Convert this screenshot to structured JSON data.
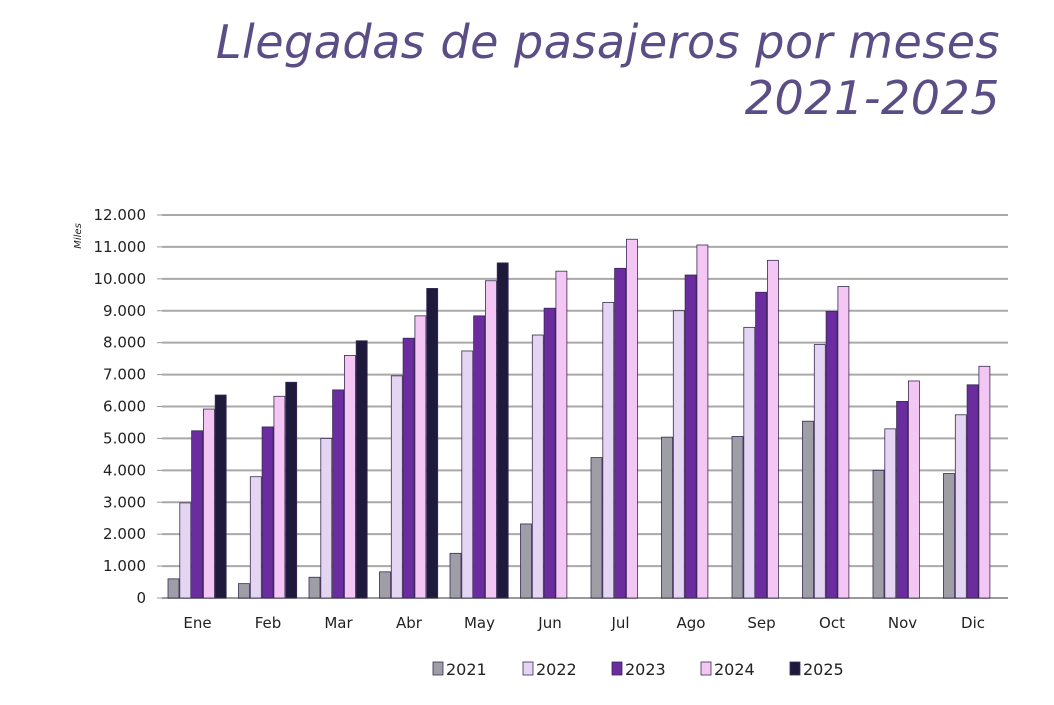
{
  "title_line1": "Llegadas de pasajeros por meses",
  "title_line2": "2021-2025",
  "chart_data": {
    "type": "bar",
    "title": "Llegadas de pasajeros por meses 2021-2025",
    "ylabel": "Miles",
    "xlabel": "",
    "ylim": [
      0,
      12000
    ],
    "yticks": [
      0,
      1000,
      2000,
      3000,
      4000,
      5000,
      6000,
      7000,
      8000,
      9000,
      10000,
      11000,
      12000
    ],
    "ytick_labels": [
      "0",
      "1.000",
      "2.000",
      "3.000",
      "4.000",
      "5.000",
      "6.000",
      "7.000",
      "8.000",
      "9.000",
      "10.000",
      "11.000",
      "12.000"
    ],
    "grid": true,
    "legend_position": "bottom",
    "categories": [
      "Ene",
      "Feb",
      "Mar",
      "Abr",
      "May",
      "Jun",
      "Jul",
      "Ago",
      "Sep",
      "Oct",
      "Nov",
      "Dic"
    ],
    "series": [
      {
        "name": "2021",
        "color": "#9e9ea6",
        "values": [
          600,
          450,
          650,
          820,
          1400,
          2320,
          4400,
          5040,
          5060,
          5540,
          4000,
          3900
        ]
      },
      {
        "name": "2022",
        "color": "#e4d6f2",
        "values": [
          2980,
          3800,
          5000,
          6960,
          7740,
          8240,
          9260,
          9000,
          8480,
          7940,
          5300,
          5740
        ]
      },
      {
        "name": "2023",
        "color": "#6a2c9e",
        "values": [
          5240,
          5360,
          6520,
          8140,
          8840,
          9080,
          10330,
          10120,
          9580,
          8980,
          6160,
          6680
        ]
      },
      {
        "name": "2024",
        "color": "#f4c6f4",
        "values": [
          5920,
          6320,
          7600,
          8840,
          9940,
          10240,
          11240,
          11060,
          10580,
          9760,
          6800,
          7260
        ]
      },
      {
        "name": "2025",
        "color": "#1e1a3c",
        "values": [
          6360,
          6760,
          8060,
          9700,
          10500,
          null,
          null,
          null,
          null,
          null,
          null,
          null
        ]
      }
    ]
  }
}
